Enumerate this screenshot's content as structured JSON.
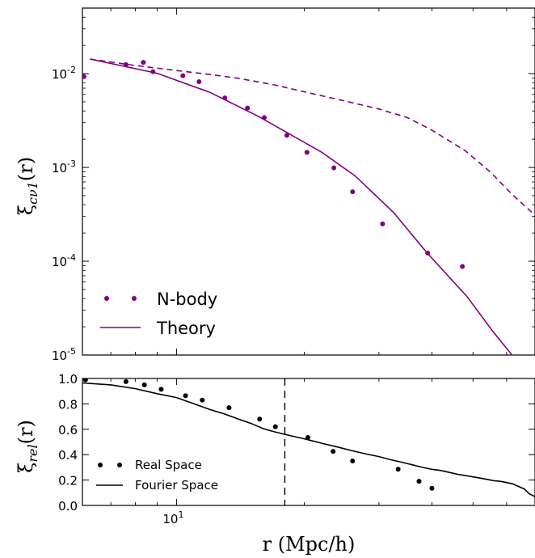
{
  "chart_data": [
    {
      "type": "scatter",
      "panel": "top",
      "xscale": "log",
      "yscale": "log",
      "xlim": [
        6.0,
        70.0
      ],
      "ylim": [
        1e-05,
        0.05
      ],
      "ylabel_base": "ξ",
      "ylabel_sub": "cν1",
      "ylabel_arg": "(r)",
      "yticks": [
        {
          "value": 0.01,
          "base": "10",
          "exp": "-2"
        },
        {
          "value": 0.001,
          "base": "10",
          "exp": "-3"
        },
        {
          "value": 0.0001,
          "base": "10",
          "exp": "-4"
        },
        {
          "value": 1e-05,
          "base": "10",
          "exp": "-5"
        }
      ],
      "series": [
        {
          "name": "N-body",
          "style": "points",
          "color": "#800080",
          "x": [
            6.05,
            7.6,
            8.35,
            8.8,
            10.35,
            11.3,
            13.0,
            14.7,
            16.1,
            18.2,
            20.3,
            23.5,
            26.0,
            30.6,
            39.1,
            47.2,
            51.5
          ],
          "y": [
            0.0093,
            0.0125,
            0.0132,
            0.0105,
            0.0095,
            0.0082,
            0.0055,
            0.0043,
            0.0034,
            0.0022,
            0.00145,
            0.00099,
            0.00055,
            0.00025,
            0.000122,
            8.8e-05,
            0.0
          ]
        },
        {
          "name": "Theory",
          "style": "solid",
          "color": "#800080",
          "x": [
            6.25,
            9.0,
            12.0,
            15.6,
            22.0,
            26.4,
            32.5,
            39.0,
            48.4,
            55.6,
            70.0
          ],
          "y": [
            0.0143,
            0.0101,
            0.0063,
            0.0035,
            0.00145,
            0.00081,
            0.00033,
            0.000122,
            4.2e-05,
            1.8e-05,
            0.0
          ]
        },
        {
          "name": "",
          "style": "dashed",
          "color": "#800080",
          "x": [
            6.25,
            8.0,
            10.0,
            12.0,
            14.0,
            17.0,
            20.0,
            25.0,
            30.0,
            35.0,
            40.0,
            48.0,
            55.0,
            62.0,
            70.0
          ],
          "y": [
            0.0143,
            0.0122,
            0.0108,
            0.0098,
            0.0089,
            0.0076,
            0.0064,
            0.0051,
            0.0042,
            0.0034,
            0.0025,
            0.0015,
            0.00089,
            0.00051,
            0.00031
          ]
        }
      ],
      "legend": {
        "placement": "lower-left",
        "entries": [
          {
            "label": "N-body",
            "style": "points"
          },
          {
            "label": "Theory",
            "style": "solid"
          }
        ]
      }
    },
    {
      "type": "line",
      "panel": "bottom",
      "xscale": "log",
      "yscale": "linear",
      "xlim": [
        6.0,
        70.0
      ],
      "ylim": [
        0.0,
        1.0
      ],
      "xlabel": "r (Mpc/h)",
      "ylabel_base": "ξ",
      "ylabel_sub": "rel",
      "ylabel_arg": "(r)",
      "xticks": [
        {
          "value": 10,
          "base": "10",
          "exp": "1"
        }
      ],
      "yticks": [
        "0.0",
        "0.2",
        "0.4",
        "0.6",
        "0.8",
        "1.0"
      ],
      "vline_x": 18.0,
      "series": [
        {
          "name": "Real Space",
          "style": "points",
          "color": "#000000",
          "x": [
            6.1,
            7.6,
            8.4,
            9.2,
            10.5,
            11.5,
            13.3,
            15.7,
            17.1,
            20.4,
            23.4,
            26.0,
            33.3,
            37.3,
            40.0
          ],
          "y": [
            0.99,
            0.975,
            0.95,
            0.915,
            0.865,
            0.83,
            0.77,
            0.68,
            0.62,
            0.535,
            0.425,
            0.35,
            0.285,
            0.19,
            0.135
          ]
        },
        {
          "name": "Fourier Space",
          "style": "solid",
          "color": "#000000",
          "x": [
            6.0,
            7.0,
            8.0,
            9.0,
            10.0,
            11.0,
            12.0,
            13.0,
            14.0,
            15.0,
            16.0,
            17.0,
            18.0,
            20.0,
            22.0,
            24.0,
            26.0,
            28.0,
            30.0,
            32.0,
            34.0,
            36.0,
            38.0,
            40.0,
            42.0,
            44.0,
            46.0,
            48.0,
            50.0,
            52.0,
            54.0,
            56.0,
            58.0,
            60.0,
            62.0,
            64.0,
            66.0,
            68.0,
            70.0
          ],
          "y": [
            0.965,
            0.95,
            0.92,
            0.88,
            0.85,
            0.8,
            0.755,
            0.72,
            0.68,
            0.645,
            0.605,
            0.58,
            0.56,
            0.525,
            0.49,
            0.46,
            0.43,
            0.405,
            0.385,
            0.36,
            0.34,
            0.32,
            0.3,
            0.285,
            0.275,
            0.26,
            0.245,
            0.235,
            0.225,
            0.215,
            0.205,
            0.195,
            0.19,
            0.18,
            0.17,
            0.15,
            0.13,
            0.09,
            0.07
          ]
        }
      ],
      "legend": {
        "placement": "lower-left",
        "entries": [
          {
            "label": "Real Space",
            "style": "points"
          },
          {
            "label": "Fourier Space",
            "style": "solid"
          }
        ]
      }
    }
  ]
}
